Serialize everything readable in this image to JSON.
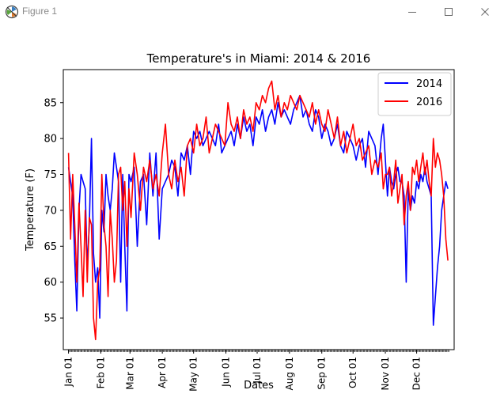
{
  "window": {
    "title": "Figure 1"
  },
  "colors": {
    "series_2014": "#0000ff",
    "series_2016": "#ff0000"
  },
  "chart_data": {
    "type": "line",
    "title": "Temperature's in Miami: 2014 & 2016",
    "xlabel": "Dates",
    "ylabel": "Temperature (F)",
    "x_unit": "day of year",
    "xlim": [
      -5,
      370
    ],
    "ylim": [
      50.6,
      89.6
    ],
    "yticks": [
      55,
      60,
      65,
      70,
      75,
      80,
      85
    ],
    "xticks": [
      {
        "label": "Jan 01",
        "day": 0
      },
      {
        "label": "Feb 01",
        "day": 31
      },
      {
        "label": "Mar 01",
        "day": 59
      },
      {
        "label": "Apr 01",
        "day": 90
      },
      {
        "label": "May 01",
        "day": 120
      },
      {
        "label": "Jun 01",
        "day": 151
      },
      {
        "label": "Jul 01",
        "day": 181
      },
      {
        "label": "Aug 01",
        "day": 212
      },
      {
        "label": "Sep 01",
        "day": 243
      },
      {
        "label": "Oct 01",
        "day": 273
      },
      {
        "label": "Nov 01",
        "day": 304
      },
      {
        "label": "Dec 01",
        "day": 334
      }
    ],
    "legend": "upper-right",
    "series": [
      {
        "name": "2014",
        "x": [
          0,
          2,
          4,
          6,
          8,
          10,
          12,
          14,
          16,
          18,
          20,
          22,
          24,
          26,
          28,
          30,
          32,
          34,
          36,
          38,
          40,
          42,
          44,
          46,
          48,
          50,
          52,
          54,
          56,
          58,
          60,
          63,
          66,
          69,
          72,
          75,
          78,
          81,
          84,
          87,
          90,
          93,
          96,
          99,
          102,
          105,
          108,
          111,
          114,
          117,
          120,
          123,
          126,
          129,
          132,
          135,
          138,
          141,
          144,
          147,
          150,
          153,
          156,
          159,
          162,
          165,
          168,
          171,
          174,
          177,
          180,
          183,
          186,
          189,
          192,
          195,
          198,
          201,
          204,
          207,
          210,
          213,
          216,
          219,
          222,
          225,
          228,
          231,
          234,
          237,
          240,
          243,
          246,
          249,
          252,
          255,
          258,
          261,
          264,
          267,
          270,
          273,
          276,
          279,
          282,
          285,
          288,
          291,
          294,
          297,
          300,
          302,
          304,
          306,
          308,
          310,
          312,
          314,
          316,
          318,
          320,
          322,
          324,
          326,
          328,
          330,
          332,
          334,
          336,
          338,
          340,
          342,
          344,
          346,
          348,
          350,
          352,
          354,
          356,
          358,
          360,
          362,
          364
        ],
        "y": [
          76,
          74,
          72,
          63,
          56,
          70,
          75,
          74,
          73,
          62,
          68,
          80,
          64,
          60,
          62,
          55,
          70,
          67,
          75,
          72,
          70,
          73,
          78,
          76,
          74,
          60,
          75,
          65,
          56,
          75,
          74,
          76,
          65,
          74,
          75,
          68,
          78,
          72,
          78,
          66,
          73,
          74,
          75,
          77,
          76,
          72,
          78,
          77,
          79,
          75,
          81,
          80,
          81,
          79,
          80,
          81,
          80,
          79,
          82,
          78,
          79,
          80,
          81,
          79,
          82,
          80,
          83,
          81,
          82,
          79,
          83,
          82,
          84,
          81,
          83,
          84,
          82,
          85,
          83,
          84,
          83,
          82,
          84,
          85,
          86,
          83,
          84,
          82,
          81,
          84,
          83,
          80,
          82,
          81,
          79,
          80,
          82,
          79,
          78,
          81,
          80,
          79,
          77,
          79,
          80,
          76,
          81,
          80,
          79,
          75,
          80,
          82,
          77,
          72,
          76,
          74,
          73,
          75,
          76,
          74,
          74,
          72,
          60,
          73,
          70,
          72,
          71,
          74,
          73,
          75,
          74,
          76,
          74,
          73,
          72,
          54,
          58,
          62,
          65,
          70,
          72,
          74,
          73
        ]
      },
      {
        "name": "2016",
        "x": [
          0,
          2,
          4,
          6,
          8,
          10,
          12,
          14,
          16,
          18,
          20,
          22,
          24,
          26,
          28,
          30,
          32,
          34,
          36,
          38,
          40,
          42,
          44,
          46,
          48,
          50,
          52,
          54,
          56,
          58,
          60,
          63,
          66,
          69,
          72,
          75,
          78,
          81,
          84,
          87,
          90,
          93,
          96,
          99,
          102,
          105,
          108,
          111,
          114,
          117,
          120,
          123,
          126,
          129,
          132,
          135,
          138,
          141,
          144,
          147,
          150,
          153,
          156,
          159,
          162,
          165,
          168,
          171,
          174,
          177,
          180,
          183,
          186,
          189,
          192,
          195,
          198,
          201,
          204,
          207,
          210,
          213,
          216,
          219,
          222,
          225,
          228,
          231,
          234,
          237,
          240,
          243,
          246,
          249,
          252,
          255,
          258,
          261,
          264,
          267,
          270,
          273,
          276,
          279,
          282,
          285,
          288,
          291,
          294,
          297,
          300,
          302,
          304,
          306,
          308,
          310,
          312,
          314,
          316,
          318,
          320,
          322,
          324,
          326,
          328,
          330,
          332,
          334,
          336,
          338,
          340,
          342,
          344,
          346,
          348,
          350,
          352,
          354,
          356,
          358,
          360,
          362,
          364
        ],
        "y": [
          78,
          66,
          75,
          68,
          60,
          71,
          65,
          58,
          70,
          60,
          69,
          68,
          55,
          52,
          60,
          62,
          75,
          68,
          65,
          58,
          70,
          66,
          60,
          63,
          75,
          76,
          70,
          74,
          65,
          73,
          69,
          78,
          75,
          70,
          76,
          74,
          77,
          73,
          75,
          72,
          78,
          82,
          75,
          73,
          77,
          74,
          76,
          72,
          79,
          80,
          78,
          82,
          79,
          80,
          83,
          78,
          80,
          82,
          81,
          80,
          79,
          85,
          82,
          81,
          83,
          80,
          84,
          82,
          83,
          81,
          85,
          84,
          86,
          85,
          87,
          88,
          84,
          86,
          83,
          85,
          84,
          86,
          85,
          84,
          86,
          85,
          84,
          83,
          85,
          82,
          84,
          82,
          81,
          84,
          82,
          80,
          83,
          79,
          81,
          78,
          80,
          82,
          79,
          80,
          77,
          78,
          79,
          75,
          77,
          76,
          78,
          73,
          75,
          75,
          76,
          72,
          74,
          77,
          71,
          73,
          75,
          68,
          72,
          74,
          70,
          76,
          75,
          77,
          74,
          76,
          78,
          75,
          77,
          74,
          72,
          80,
          76,
          78,
          77,
          75,
          72,
          66,
          63
        ]
      }
    ]
  }
}
